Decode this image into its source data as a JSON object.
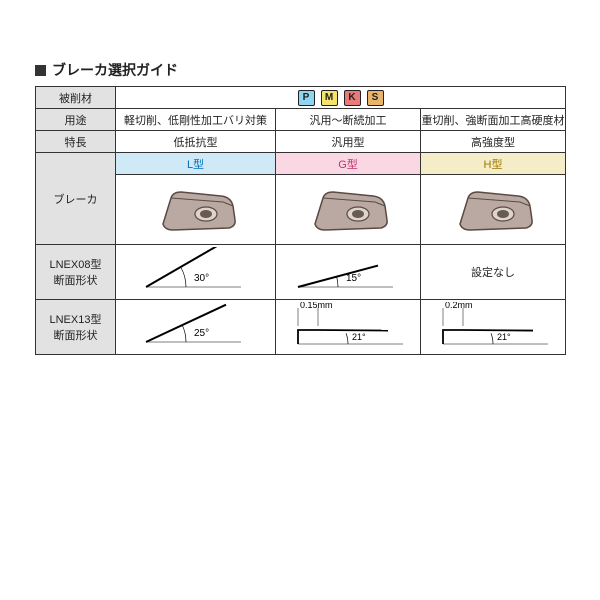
{
  "title": "ブレーカ選択ガイド",
  "rows": {
    "workmat": "被削材",
    "use": "用途",
    "feature": "特長",
    "breaker": "ブレーカ",
    "lnex08": "LNEX08型\n断面形状",
    "lnex13": "LNEX13型\n断面形状"
  },
  "badges": [
    {
      "letter": "P",
      "bg": "#8fd5f3"
    },
    {
      "letter": "M",
      "bg": "#f6e36a"
    },
    {
      "letter": "K",
      "bg": "#e97a7a"
    },
    {
      "letter": "S",
      "bg": "#e9b46a"
    }
  ],
  "cols": {
    "L": {
      "use": "軽切削、低剛性加工バリ対策",
      "feature": "低抵抗型",
      "type": "L型",
      "lnex08": {
        "angle": "30°"
      },
      "lnex13": {
        "angle": "25°"
      }
    },
    "G": {
      "use": "汎用～断続加工",
      "feature": "汎用型",
      "type": "G型",
      "lnex08": {
        "angle": "15°"
      },
      "lnex13": {
        "land": "0.15mm",
        "angle": "21°"
      }
    },
    "H": {
      "use": "重切削、強断面加工高硬度材",
      "feature": "高強度型",
      "type": "H型",
      "lnex08": {
        "text": "設定なし"
      },
      "lnex13": {
        "land": "0.2mm",
        "angle": "21°"
      }
    }
  },
  "insert_fill": "#b9a9a2",
  "insert_stroke": "#5a4a42"
}
